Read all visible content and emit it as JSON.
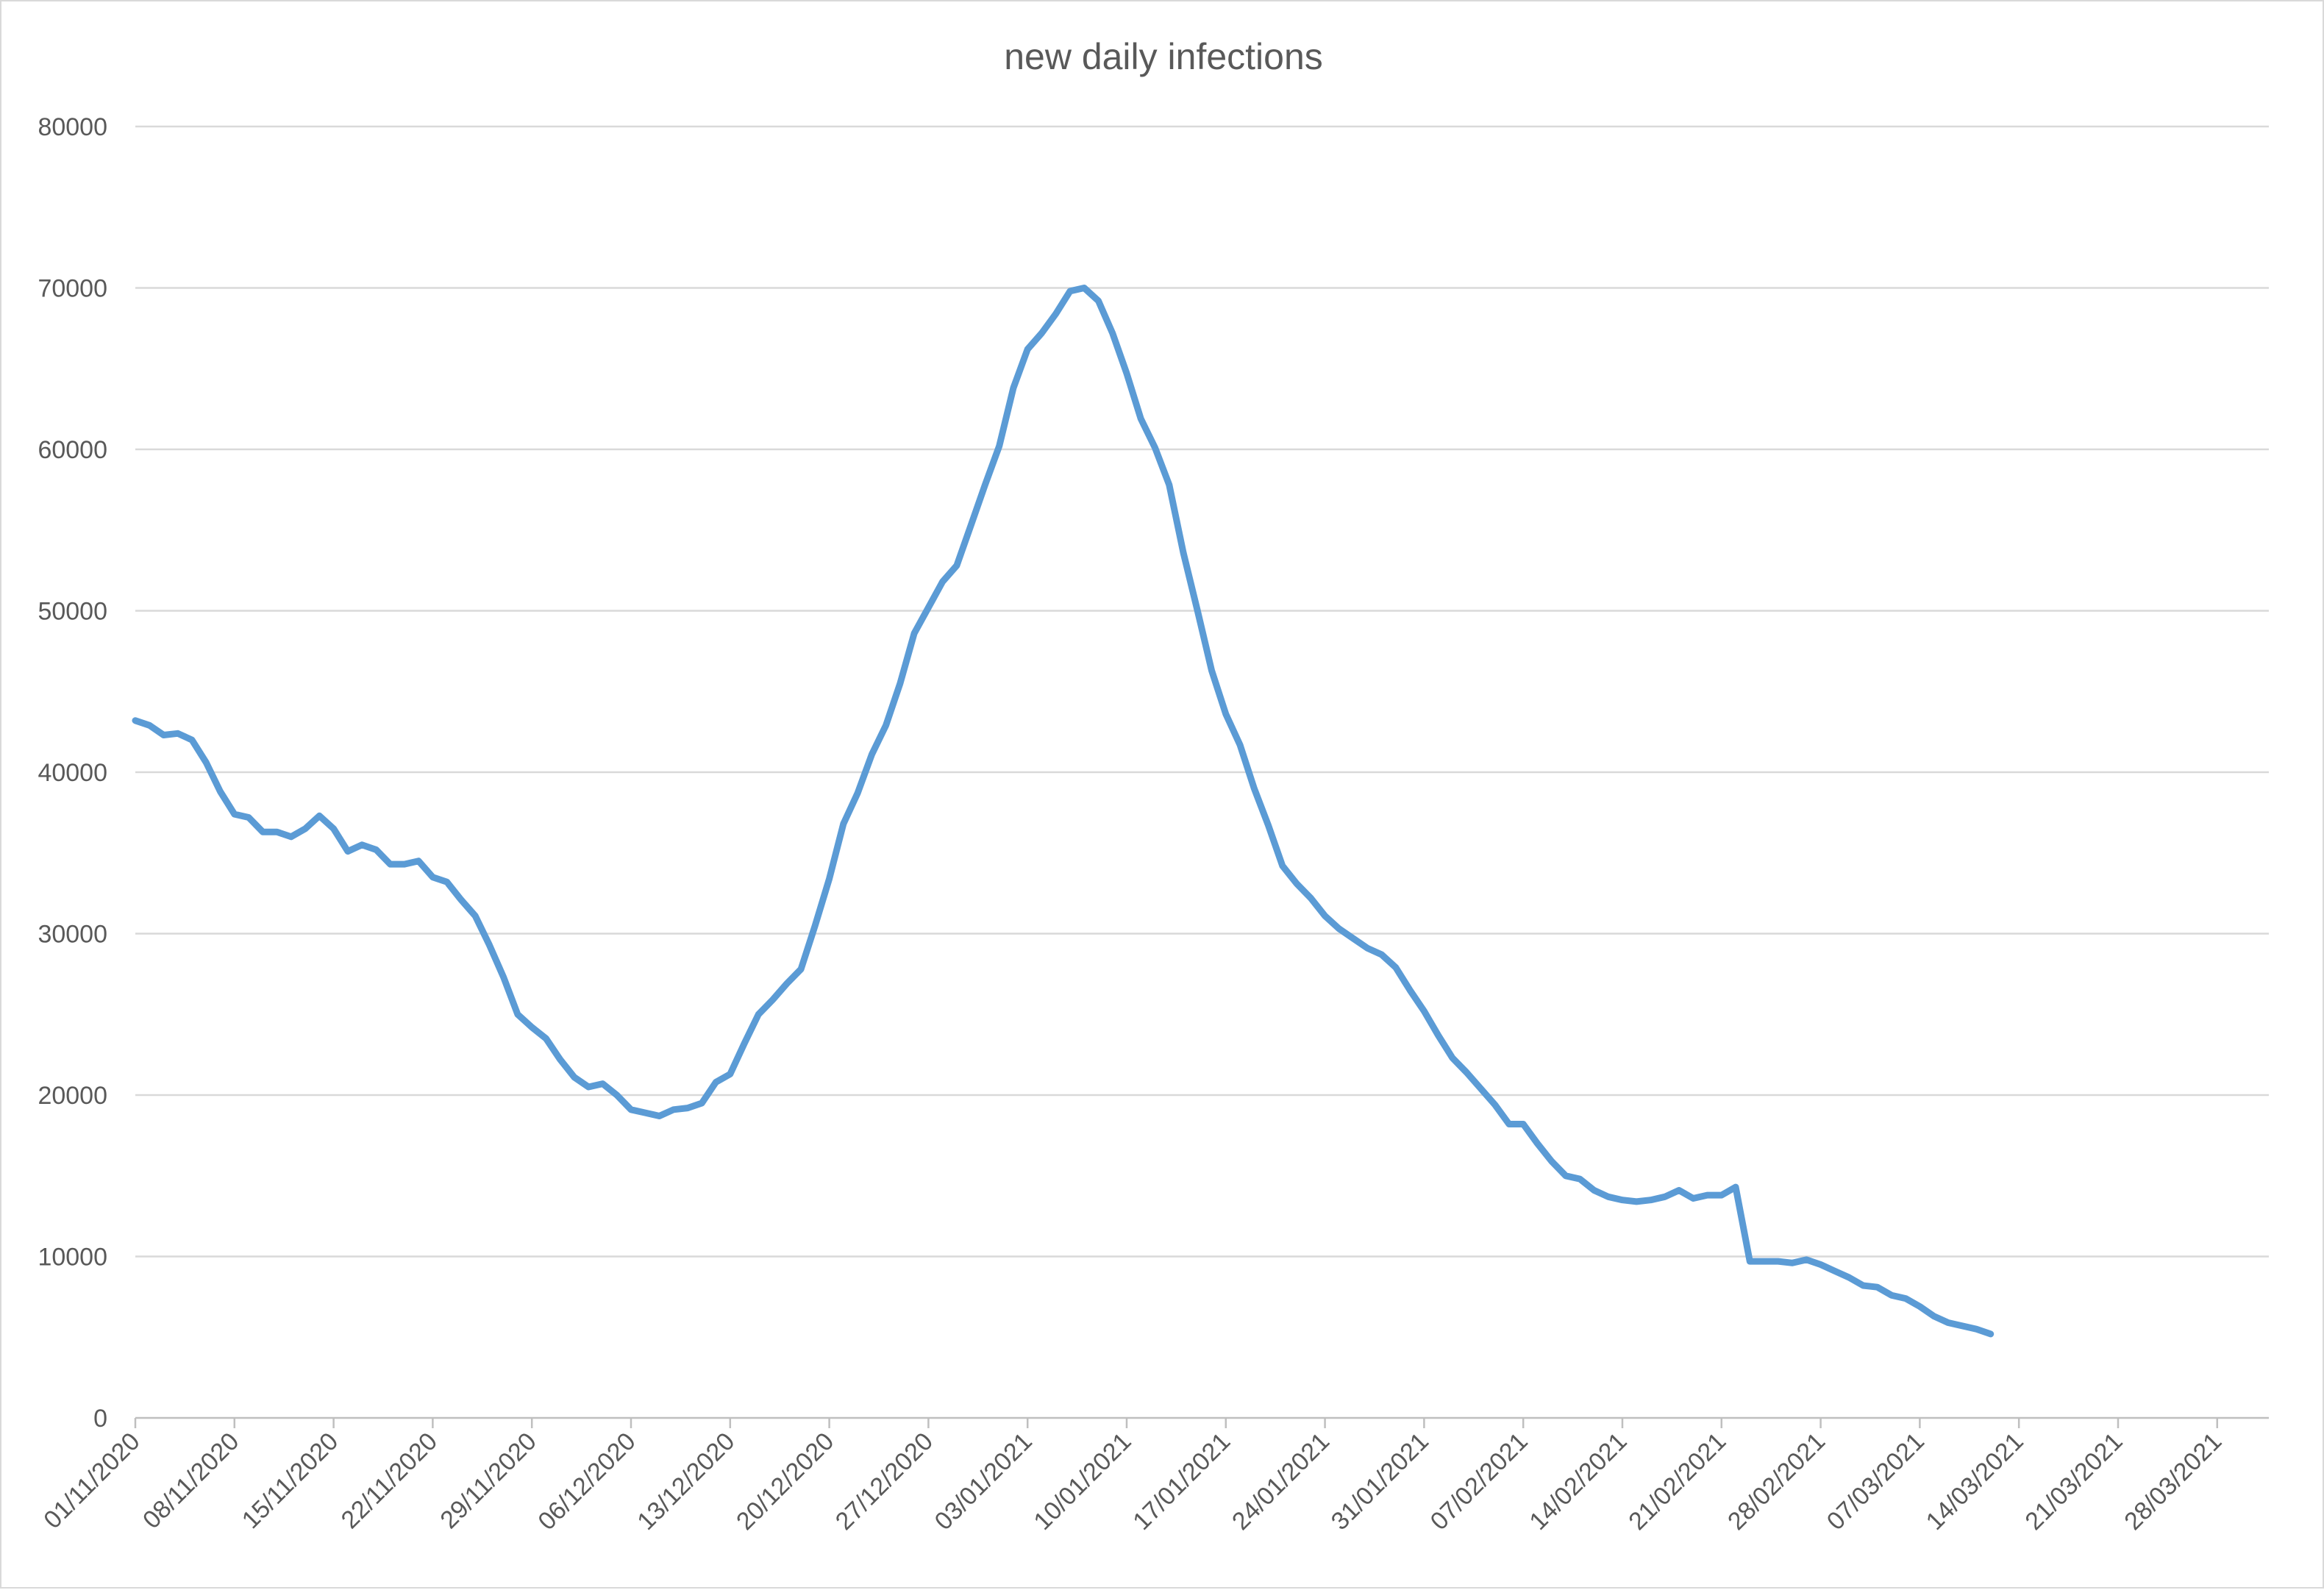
{
  "chart_data": {
    "type": "line",
    "title": "new daily infections",
    "xlabel": "",
    "ylabel": "",
    "ylim": [
      0,
      80000
    ],
    "yticks": [
      0,
      10000,
      20000,
      30000,
      40000,
      50000,
      60000,
      70000,
      80000
    ],
    "x_start": "01/11/2020",
    "x_end": "03/04/2021",
    "xticks": [
      "01/11/2020",
      "08/11/2020",
      "15/11/2020",
      "22/11/2020",
      "29/11/2020",
      "06/12/2020",
      "13/12/2020",
      "20/12/2020",
      "27/12/2020",
      "03/01/2021",
      "10/01/2021",
      "17/01/2021",
      "24/01/2021",
      "31/01/2021",
      "07/02/2021",
      "14/02/2021",
      "21/02/2021",
      "28/02/2021",
      "07/03/2021",
      "14/03/2021",
      "21/03/2021",
      "28/03/2021"
    ],
    "grid": true,
    "legend": "none",
    "series": [
      {
        "color": "#5b9bd5",
        "points": [
          [
            "01/11/2020",
            43200
          ],
          [
            "02/11/2020",
            42900
          ],
          [
            "03/11/2020",
            42300
          ],
          [
            "04/11/2020",
            42400
          ],
          [
            "05/11/2020",
            42000
          ],
          [
            "06/11/2020",
            40600
          ],
          [
            "07/11/2020",
            38800
          ],
          [
            "08/11/2020",
            37400
          ],
          [
            "09/11/2020",
            37200
          ],
          [
            "10/11/2020",
            36300
          ],
          [
            "11/11/2020",
            36300
          ],
          [
            "12/11/2020",
            36000
          ],
          [
            "13/11/2020",
            36500
          ],
          [
            "14/11/2020",
            37300
          ],
          [
            "15/11/2020",
            36500
          ],
          [
            "16/11/2020",
            35100
          ],
          [
            "17/11/2020",
            35500
          ],
          [
            "18/11/2020",
            35200
          ],
          [
            "19/11/2020",
            34300
          ],
          [
            "20/11/2020",
            34300
          ],
          [
            "21/11/2020",
            34500
          ],
          [
            "22/11/2020",
            33500
          ],
          [
            "23/11/2020",
            33200
          ],
          [
            "24/11/2020",
            32100
          ],
          [
            "25/11/2020",
            31100
          ],
          [
            "26/11/2020",
            29300
          ],
          [
            "27/11/2020",
            27300
          ],
          [
            "28/11/2020",
            25000
          ],
          [
            "29/11/2020",
            24200
          ],
          [
            "30/11/2020",
            23500
          ],
          [
            "01/12/2020",
            22200
          ],
          [
            "02/12/2020",
            21100
          ],
          [
            "03/12/2020",
            20500
          ],
          [
            "04/12/2020",
            20700
          ],
          [
            "05/12/2020",
            20000
          ],
          [
            "06/12/2020",
            19100
          ],
          [
            "07/12/2020",
            18900
          ],
          [
            "08/12/2020",
            18700
          ],
          [
            "09/12/2020",
            19100
          ],
          [
            "10/12/2020",
            19200
          ],
          [
            "11/12/2020",
            19500
          ],
          [
            "12/12/2020",
            20800
          ],
          [
            "13/12/2020",
            21300
          ],
          [
            "14/12/2020",
            23200
          ],
          [
            "15/12/2020",
            25000
          ],
          [
            "16/12/2020",
            25900
          ],
          [
            "17/12/2020",
            26900
          ],
          [
            "18/12/2020",
            27800
          ],
          [
            "19/12/2020",
            30500
          ],
          [
            "20/12/2020",
            33400
          ],
          [
            "21/12/2020",
            36800
          ],
          [
            "22/12/2020",
            38700
          ],
          [
            "23/12/2020",
            41100
          ],
          [
            "24/12/2020",
            42900
          ],
          [
            "25/12/2020",
            45500
          ],
          [
            "26/12/2020",
            48600
          ],
          [
            "27/12/2020",
            50200
          ],
          [
            "28/12/2020",
            51800
          ],
          [
            "29/12/2020",
            52800
          ],
          [
            "30/12/2020",
            55300
          ],
          [
            "31/12/2020",
            57800
          ],
          [
            "01/01/2021",
            60200
          ],
          [
            "02/01/2021",
            63800
          ],
          [
            "03/01/2021",
            66200
          ],
          [
            "04/01/2021",
            67200
          ],
          [
            "05/01/2021",
            68400
          ],
          [
            "06/01/2021",
            69800
          ],
          [
            "07/01/2021",
            70000
          ],
          [
            "08/01/2021",
            69200
          ],
          [
            "09/01/2021",
            67200
          ],
          [
            "10/01/2021",
            64700
          ],
          [
            "11/01/2021",
            61900
          ],
          [
            "12/01/2021",
            60100
          ],
          [
            "13/01/2021",
            57800
          ],
          [
            "14/01/2021",
            53600
          ],
          [
            "15/01/2021",
            50000
          ],
          [
            "16/01/2021",
            46300
          ],
          [
            "17/01/2021",
            43600
          ],
          [
            "18/01/2021",
            41700
          ],
          [
            "19/01/2021",
            39000
          ],
          [
            "20/01/2021",
            36700
          ],
          [
            "21/01/2021",
            34200
          ],
          [
            "22/01/2021",
            33100
          ],
          [
            "23/01/2021",
            32200
          ],
          [
            "24/01/2021",
            31100
          ],
          [
            "25/01/2021",
            30300
          ],
          [
            "26/01/2021",
            29700
          ],
          [
            "27/01/2021",
            29100
          ],
          [
            "28/01/2021",
            28700
          ],
          [
            "29/01/2021",
            27900
          ],
          [
            "30/01/2021",
            26500
          ],
          [
            "31/01/2021",
            25200
          ],
          [
            "01/02/2021",
            23700
          ],
          [
            "02/02/2021",
            22300
          ],
          [
            "03/02/2021",
            21400
          ],
          [
            "04/02/2021",
            20400
          ],
          [
            "05/02/2021",
            19400
          ],
          [
            "06/02/2021",
            18200
          ],
          [
            "07/02/2021",
            18200
          ],
          [
            "08/02/2021",
            17000
          ],
          [
            "09/02/2021",
            15900
          ],
          [
            "10/02/2021",
            15000
          ],
          [
            "11/02/2021",
            14800
          ],
          [
            "12/02/2021",
            14100
          ],
          [
            "13/02/2021",
            13700
          ],
          [
            "14/02/2021",
            13500
          ],
          [
            "15/02/2021",
            13400
          ],
          [
            "16/02/2021",
            13500
          ],
          [
            "17/02/2021",
            13700
          ],
          [
            "18/02/2021",
            14100
          ],
          [
            "19/02/2021",
            13600
          ],
          [
            "20/02/2021",
            13800
          ],
          [
            "21/02/2021",
            13800
          ],
          [
            "22/02/2021",
            14300
          ],
          [
            "23/02/2021",
            9700
          ],
          [
            "24/02/2021",
            9700
          ],
          [
            "25/02/2021",
            9700
          ],
          [
            "26/02/2021",
            9600
          ],
          [
            "27/02/2021",
            9800
          ],
          [
            "28/02/2021",
            9500
          ],
          [
            "01/03/2021",
            9100
          ],
          [
            "02/03/2021",
            8700
          ],
          [
            "03/03/2021",
            8200
          ],
          [
            "04/03/2021",
            8100
          ],
          [
            "05/03/2021",
            7600
          ],
          [
            "06/03/2021",
            7400
          ],
          [
            "07/03/2021",
            6900
          ],
          [
            "08/03/2021",
            6300
          ],
          [
            "09/03/2021",
            5900
          ],
          [
            "10/03/2021",
            5700
          ],
          [
            "11/03/2021",
            5500
          ],
          [
            "12/03/2021",
            5200
          ]
        ]
      }
    ]
  }
}
